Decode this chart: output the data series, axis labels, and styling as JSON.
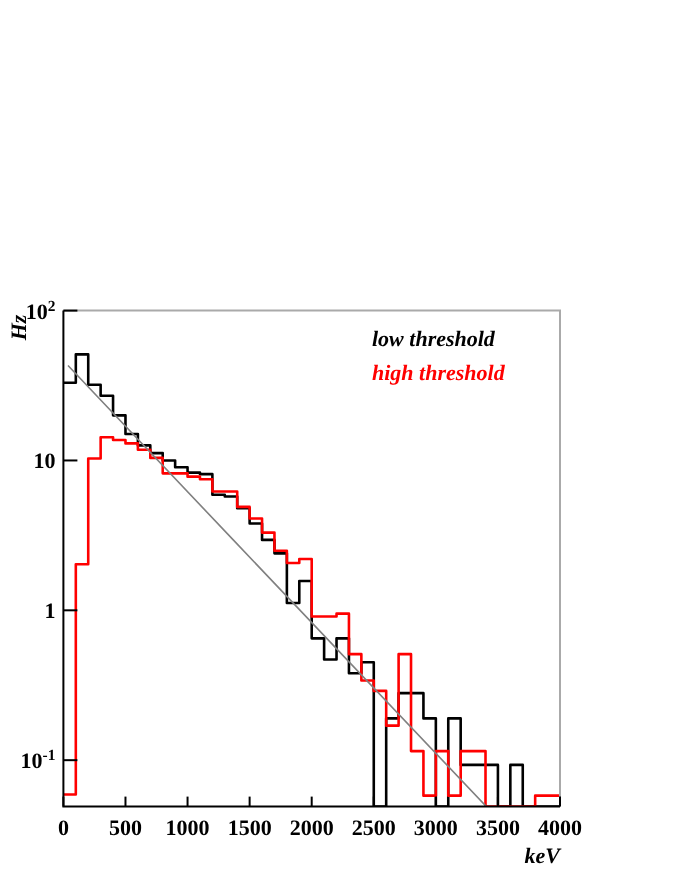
{
  "chart_data": {
    "type": "histogram",
    "xlabel": "keV",
    "ylabel": "Hz",
    "bins": [
      0,
      100,
      200,
      300,
      400,
      500,
      600,
      700,
      800,
      900,
      1000,
      1100,
      1200,
      1300,
      1400,
      1500,
      1600,
      1700,
      1800,
      1900,
      2000,
      2100,
      2200,
      2300,
      2400,
      2500,
      2600,
      2700,
      2800,
      2900,
      3000,
      3100,
      3200,
      3300,
      3400,
      3500,
      3600,
      3700,
      3800,
      3900,
      4000
    ],
    "series": [
      {
        "name": "low threshold",
        "color": "#000000",
        "values": [
          33,
          51,
          32,
          27,
          20,
          15,
          12.6,
          11.2,
          10,
          9,
          8.3,
          8.1,
          5.9,
          5.75,
          4.8,
          3.8,
          2.95,
          2.4,
          1.12,
          1.57,
          0.65,
          0.47,
          0.65,
          0.38,
          0.45,
          null,
          0.19,
          0.28,
          0.28,
          0.19,
          null,
          0.19,
          0.093,
          0.093,
          0.093,
          null,
          0.093,
          null,
          null,
          null
        ]
      },
      {
        "name": "high threshold",
        "color": "#ff0000",
        "values": [
          0.059,
          2.03,
          10.3,
          14.3,
          13.7,
          13,
          11.8,
          10.4,
          8.2,
          8.2,
          7.8,
          7.5,
          6.2,
          6.2,
          4.9,
          4.1,
          3.3,
          2.5,
          2.07,
          2.2,
          0.91,
          0.91,
          0.95,
          0.51,
          0.34,
          0.29,
          0.17,
          0.51,
          0.115,
          0.058,
          0.115,
          0.058,
          0.115,
          0.115,
          null,
          null,
          null,
          null,
          0.058,
          0.058
        ]
      },
      {
        "type": "line",
        "color": "#808080",
        "x": [
          37,
          1368,
          3407
        ],
        "values": [
          43,
          2.95,
          0.049
        ]
      }
    ],
    "xlim": [
      0,
      4000
    ],
    "xticks": [
      0,
      500,
      1000,
      1500,
      2000,
      2500,
      3000,
      3500,
      4000
    ],
    "ylim": [
      0.049,
      100
    ],
    "yticks": [
      {
        "value": 0.1,
        "label": "10$^{-1}$"
      },
      1,
      10,
      {
        "value": 100,
        "label": "10$^{2}$"
      }
    ],
    "log": "y",
    "legend": "top right",
    "grid": false
  }
}
